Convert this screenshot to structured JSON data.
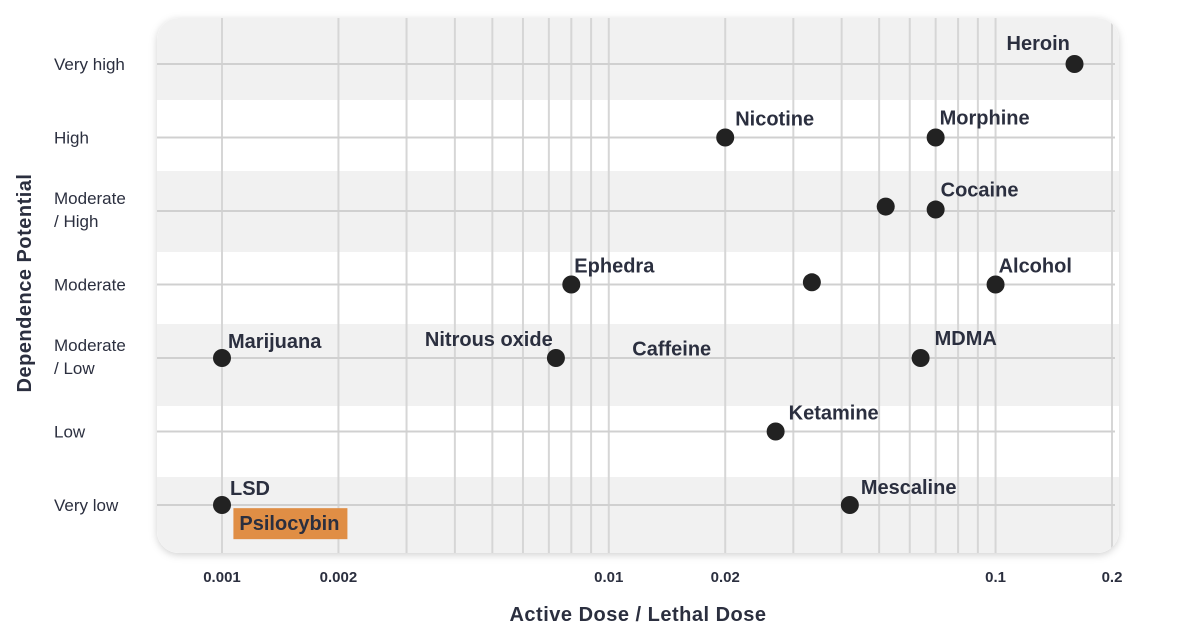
{
  "chart_data": {
    "type": "scatter",
    "title": "",
    "xlabel": "Active Dose / Lethal Dose",
    "ylabel": "Dependence Potential",
    "x_scale": "log",
    "xlim": [
      0.00087,
      0.2
    ],
    "x_ticks": [
      {
        "value": 0.001,
        "label": "0.001"
      },
      {
        "value": 0.002,
        "label": "0.002"
      },
      {
        "value": 0.01,
        "label": "0.01"
      },
      {
        "value": 0.02,
        "label": "0.02"
      },
      {
        "value": 0.1,
        "label": "0.1"
      },
      {
        "value": 0.2,
        "label": "0.2"
      }
    ],
    "y_categories": [
      [
        "Very low"
      ],
      [
        "Low"
      ],
      [
        "Moderate",
        "/ Low"
      ],
      [
        "Moderate"
      ],
      [
        "Moderate",
        "/ High"
      ],
      [
        "High"
      ],
      [
        "Very high"
      ]
    ],
    "grid": true,
    "points": [
      {
        "name": "Heroin",
        "x": 0.16,
        "y": 6.0
      },
      {
        "name": "Nicotine",
        "x": 0.02,
        "y": 5.0
      },
      {
        "name": "Morphine",
        "x": 0.07,
        "y": 5.0
      },
      {
        "name": "",
        "x": 0.052,
        "y": 4.06
      },
      {
        "name": "Cocaine",
        "x": 0.07,
        "y": 4.02
      },
      {
        "name": "Ephedra",
        "x": 0.008,
        "y": 3.0
      },
      {
        "name": "",
        "x": 0.0335,
        "y": 3.03
      },
      {
        "name": "Alcohol",
        "x": 0.1,
        "y": 3.0
      },
      {
        "name": "Marijuana",
        "x": 0.001,
        "y": 2.0
      },
      {
        "name": "Nitrous oxide",
        "x": 0.0073,
        "y": 2.0
      },
      {
        "name": "MDMA",
        "x": 0.064,
        "y": 2.0
      },
      {
        "name": "Ketamine",
        "x": 0.027,
        "y": 1.0
      },
      {
        "name": "LSD",
        "x": 0.001,
        "y": 0.0
      },
      {
        "name": "Mescaline",
        "x": 0.042,
        "y": 0.0
      }
    ],
    "free_labels": [
      {
        "text": "Caffeine",
        "x": 0.0115,
        "y": 2.1
      },
      {
        "text": "Psilocybin",
        "x": 0.00145,
        "y": -0.22,
        "highlight": "#e08e45"
      }
    ]
  }
}
